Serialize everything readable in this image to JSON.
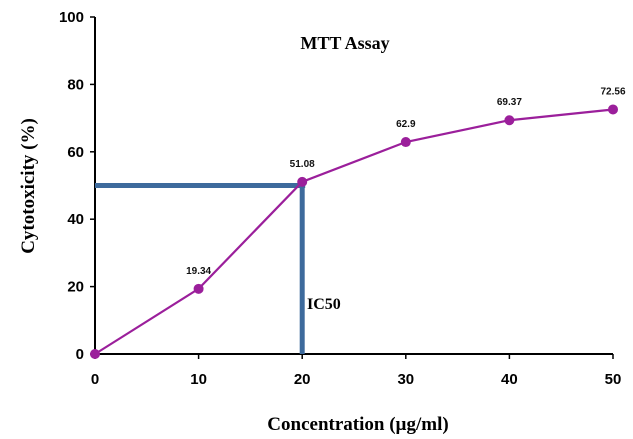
{
  "chart_data": {
    "type": "line",
    "title": "MTT Assay",
    "xlabel": "Concentration (µg/ml)",
    "ylabel": "Cytotoxicity (%)",
    "xlim": [
      0,
      50
    ],
    "ylim": [
      0,
      100
    ],
    "x_ticks": [
      "0",
      "10",
      "20",
      "30",
      "40",
      "50"
    ],
    "y_ticks": [
      "0",
      "20",
      "40",
      "60",
      "80",
      "100"
    ],
    "grid": false,
    "series": [
      {
        "x": [
          0,
          10,
          20,
          30,
          40,
          50
        ],
        "values": [
          0,
          19.34,
          51.08,
          62.9,
          69.37,
          72.56
        ],
        "data_labels": [
          "",
          "19.34",
          "51.08",
          "62.9",
          "69.37",
          "72.56"
        ],
        "color": "#9B1F9B"
      }
    ],
    "annotation": {
      "text": "IC50",
      "x": 20,
      "y": 50,
      "color": "#3D6A9C"
    }
  }
}
